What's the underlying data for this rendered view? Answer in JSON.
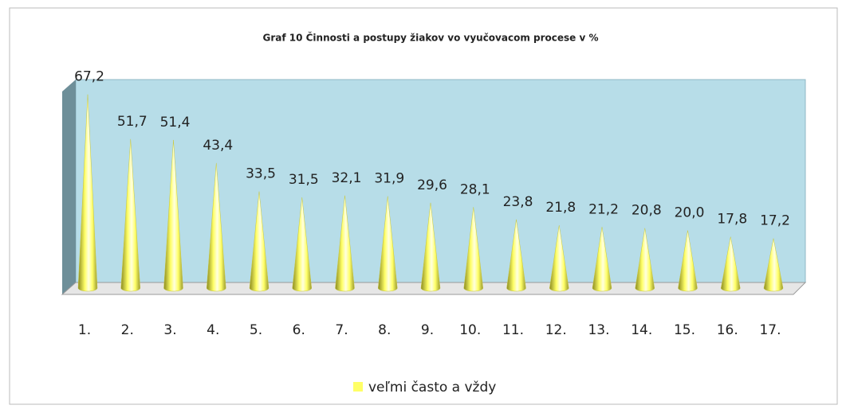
{
  "chart_data": {
    "type": "cone",
    "title": "Graf 10  Činnosti a postupy žiakov vo vyučovacom procese v %",
    "categories": [
      "1.",
      "2.",
      "3.",
      "4.",
      "5.",
      "6.",
      "7.",
      "8.",
      "9.",
      "10.",
      "11.",
      "12.",
      "13.",
      "14.",
      "15.",
      "16.",
      "17."
    ],
    "series": [
      {
        "name": "veľmi často a vždy",
        "color": "#ffff66",
        "values": [
          67.2,
          51.7,
          51.4,
          43.4,
          33.5,
          31.5,
          32.1,
          31.9,
          29.6,
          28.1,
          23.8,
          21.8,
          21.2,
          20.8,
          20.0,
          17.8,
          17.2
        ],
        "value_labels": [
          "67,2",
          "51,7",
          "51,4",
          "43,4",
          "33,5",
          "31,5",
          "32,1",
          "31,9",
          "29,6",
          "28,1",
          "23,8",
          "21,8",
          "21,2",
          "20,8",
          "20,0",
          "17,8",
          "17,2"
        ]
      }
    ],
    "legend": "bottom"
  }
}
